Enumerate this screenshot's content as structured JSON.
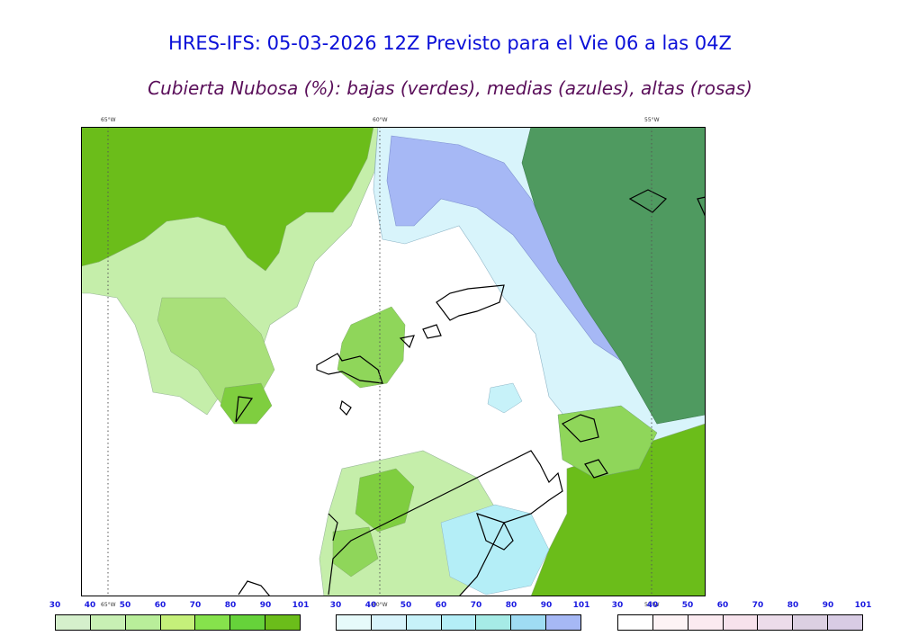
{
  "title": "HRES-IFS: 05-03-2026 12Z Previsto para el Vie 06 a las 04Z",
  "subtitle": "Cubierta Nubosa (%): bajas (verdes), medias (azules), altas (rosas)",
  "map": {
    "longitude_labels": [
      "65°W",
      "60°W",
      "55°W"
    ],
    "colors": {
      "low_cloud_dark": "#6bbd1a",
      "low_cloud_mid": "#8fd65a",
      "mid_cloud": "#a6b8f5",
      "high_cloud_overlap": "#4f9a60",
      "coastline": "#000000"
    }
  },
  "legends": [
    {
      "name": "bajas",
      "ticks": [
        "30",
        "40",
        "50",
        "60",
        "70",
        "80",
        "90",
        "101"
      ],
      "colors": [
        "#d5f0cc",
        "#c8f0b4",
        "#b9ee9a",
        "#c5f07a",
        "#86e24c",
        "#66d23a",
        "#6bbd1a"
      ]
    },
    {
      "name": "medias",
      "ticks": [
        "30",
        "40",
        "50",
        "60",
        "70",
        "80",
        "90",
        "101"
      ],
      "colors": [
        "#e6fafa",
        "#d8f4fb",
        "#c7f2f9",
        "#b4eef7",
        "#a6ebe6",
        "#9fdcf3",
        "#a6b8f5"
      ]
    },
    {
      "name": "altas",
      "ticks": [
        "30",
        "40",
        "50",
        "60",
        "70",
        "80",
        "90",
        "101"
      ],
      "colors": [
        "#ffffff",
        "#fdf3f5",
        "#fbeaf0",
        "#f7e2ec",
        "#ecdcea",
        "#dcd0e2",
        "#d8cce4"
      ]
    }
  ]
}
